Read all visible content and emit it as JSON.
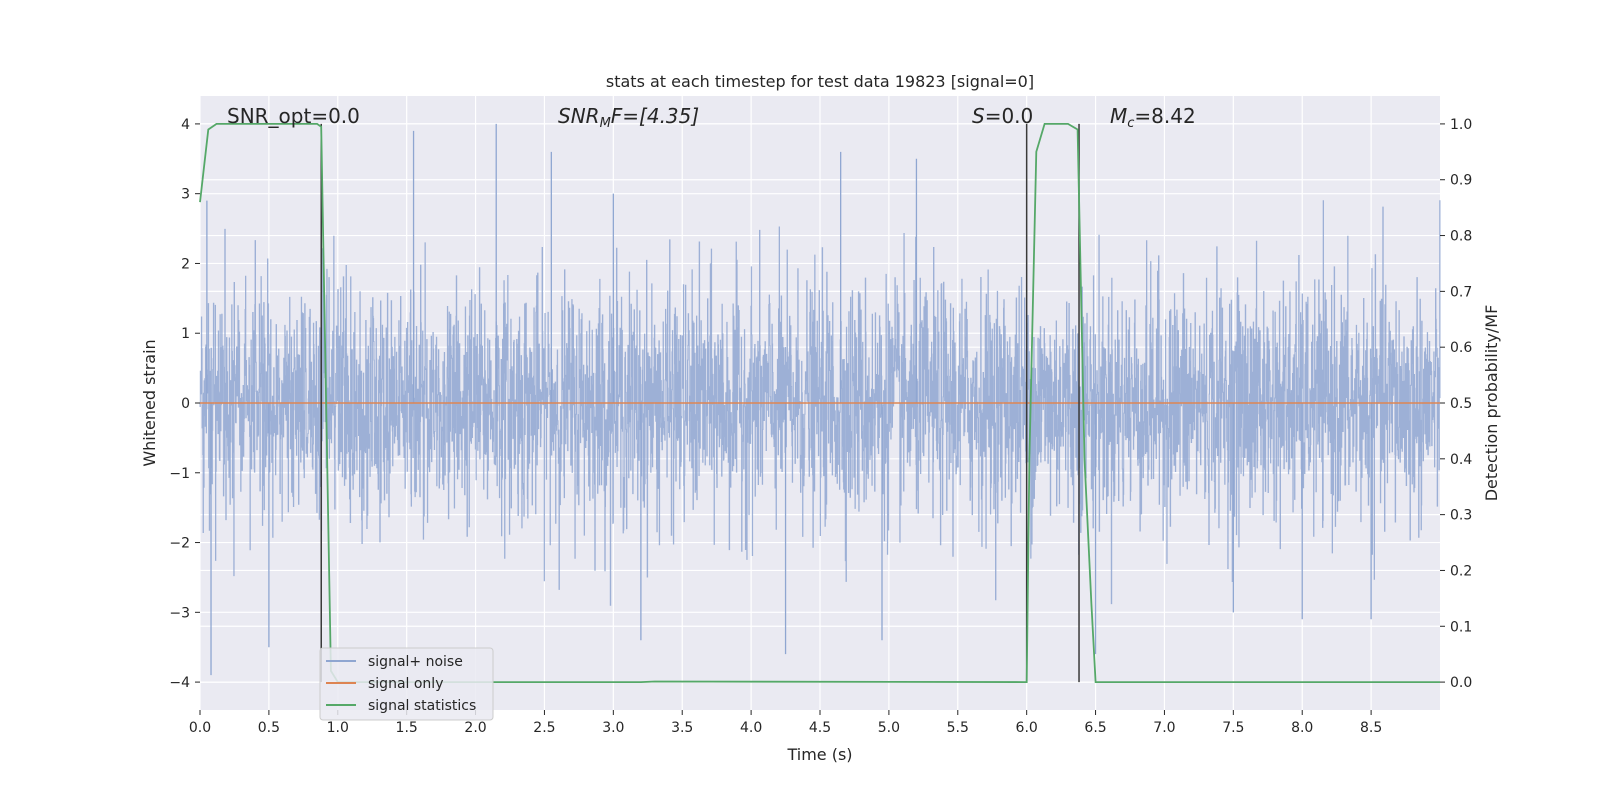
{
  "chart_data": {
    "type": "line",
    "title": "stats at each timestep for test data 19823 [signal=0]",
    "xlabel": "Time (s)",
    "ylabel": "Whitened strain",
    "y2label": "Detection probability/MF",
    "xlim": [
      0.0,
      9.0
    ],
    "ylim": [
      -4.4,
      4.4
    ],
    "y2lim": [
      -0.05,
      1.05
    ],
    "xticks": [
      "0.0",
      "0.5",
      "1.0",
      "1.5",
      "2.0",
      "2.5",
      "3.0",
      "3.5",
      "4.0",
      "4.5",
      "5.0",
      "5.5",
      "6.0",
      "6.5",
      "7.0",
      "7.5",
      "8.0",
      "8.5"
    ],
    "yticks": [
      "4",
      "3",
      "2",
      "1",
      "0",
      "−1",
      "−2",
      "−3",
      "−4"
    ],
    "y2ticks": [
      "1.0",
      "0.9",
      "0.8",
      "0.7",
      "0.6",
      "0.5",
      "0.4",
      "0.3",
      "0.2",
      "0.1",
      "0.0"
    ],
    "grid": true,
    "legend_position": "lower-left",
    "background": "#eaeaf2",
    "annotations": {
      "snr_opt": "SNR_opt=0.0",
      "snr_mf_base": "SNR",
      "snr_mf_sub": "M",
      "snr_mf_rest": "F=[4.35]",
      "s_base": "S",
      "s_rest": "=0.0",
      "mc_base": "M",
      "mc_sub": "c",
      "mc_rest": "=8.42"
    },
    "series": [
      {
        "name": "signal+ noise",
        "color": "#8fa6d1",
        "axis": "left",
        "description": "whitened noise, roughly symmetric about 0 with amplitude ~1.6 and spikes up to ~4",
        "peaks": [
          [
            0.05,
            2.9
          ],
          [
            0.08,
            -3.9
          ],
          [
            0.5,
            -3.5
          ],
          [
            1.55,
            3.9
          ],
          [
            2.15,
            4.0
          ],
          [
            2.55,
            3.6
          ],
          [
            3.0,
            3.0
          ],
          [
            3.2,
            -3.4
          ],
          [
            4.25,
            -3.6
          ],
          [
            4.65,
            3.6
          ],
          [
            4.95,
            -3.4
          ],
          [
            5.2,
            3.5
          ],
          [
            6.5,
            -3.6
          ],
          [
            7.5,
            -3.0
          ],
          [
            8.0,
            -3.1
          ],
          [
            8.5,
            -3.1
          ]
        ]
      },
      {
        "name": "signal only",
        "color": "#dd8452",
        "axis": "left",
        "x": [
          0.0,
          9.0
        ],
        "y": [
          0.0,
          0.0
        ]
      },
      {
        "name": "signal statistics",
        "color": "#55a868",
        "axis": "right",
        "x": [
          0.0,
          0.06,
          0.12,
          0.2,
          0.5,
          0.85,
          0.88,
          0.95,
          1.0,
          3.2,
          3.3,
          6.0,
          6.02,
          6.07,
          6.13,
          6.3,
          6.37,
          6.42,
          6.47,
          6.5,
          9.0
        ],
        "y": [
          0.86,
          0.99,
          1.0,
          1.0,
          1.0,
          1.0,
          0.995,
          0.02,
          0.0,
          0.0,
          0.001,
          0.0,
          0.4,
          0.95,
          1.0,
          1.0,
          0.99,
          0.4,
          0.14,
          0.0,
          0.0
        ]
      }
    ],
    "vlines": [
      {
        "x": 0.88,
        "color": "#3a3a3a",
        "y2range": [
          0.0,
          1.0
        ]
      },
      {
        "x": 6.0,
        "color": "#3a3a3a",
        "y2range": [
          0.0,
          1.0
        ]
      },
      {
        "x": 6.38,
        "color": "#3a3a3a",
        "y2range": [
          0.0,
          1.0
        ]
      }
    ]
  }
}
